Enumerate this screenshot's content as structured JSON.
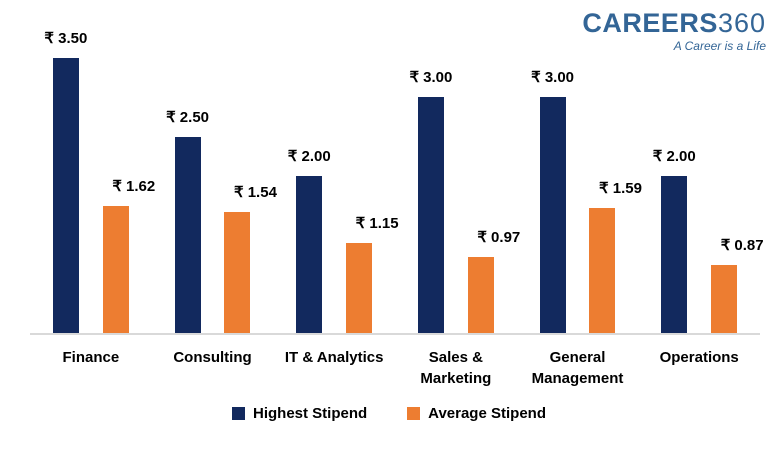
{
  "logo": {
    "brand": "CAREERS",
    "suffix": "360",
    "tagline": "A Career is a Life",
    "color": "#336596"
  },
  "colors": {
    "navy": "#12295e",
    "orange": "#ed7d31",
    "axis_line": "#d9d9d9",
    "label_text": "#000000"
  },
  "chart_data": {
    "type": "bar",
    "title": "",
    "categories": [
      "Finance",
      "Consulting",
      "IT & Analytics",
      "Sales & Marketing",
      "General Management",
      "Operations"
    ],
    "series": [
      {
        "name": "Highest Stipend",
        "color": "#12295e",
        "values": [
          3.5,
          2.5,
          2.0,
          3.0,
          3.0,
          2.0
        ],
        "labels": [
          "₹ 3.50",
          "₹ 2.50",
          "₹ 2.00",
          "₹ 3.00",
          "₹ 3.00",
          "₹ 2.00"
        ]
      },
      {
        "name": "Average Stipend",
        "color": "#ed7d31",
        "values": [
          1.62,
          1.54,
          1.15,
          0.97,
          1.59,
          0.87
        ],
        "labels": [
          "₹ 1.62",
          "₹ 1.54",
          "₹ 1.15",
          "₹ 0.97",
          "₹ 1.59",
          "₹ 0.87"
        ]
      }
    ],
    "value_prefix": "₹",
    "ylim": [
      0,
      3.5
    ],
    "grid": false,
    "legend_position": "bottom"
  }
}
